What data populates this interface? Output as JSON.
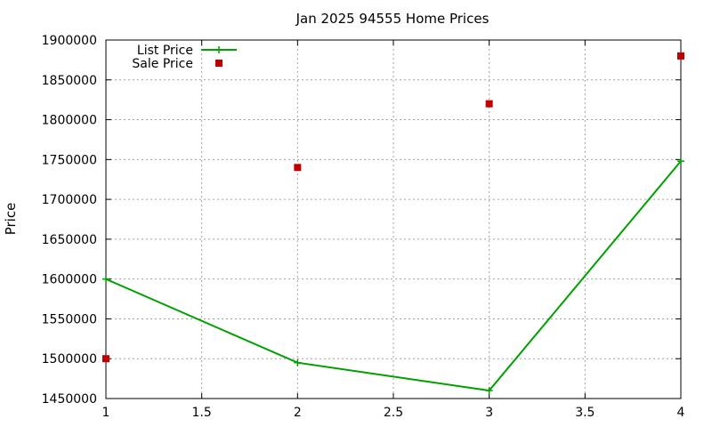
{
  "chart_data": {
    "type": "line",
    "title": "Jan 2025 94555 Home Prices",
    "xlabel": "",
    "ylabel": "Price",
    "xlim": [
      1,
      4
    ],
    "ylim": [
      1450000,
      1900000
    ],
    "xticks": [
      "1",
      "1.5",
      "2",
      "2.5",
      "3",
      "3.5",
      "4"
    ],
    "yticks": [
      "1450000",
      "1500000",
      "1550000",
      "1600000",
      "1650000",
      "1700000",
      "1750000",
      "1800000",
      "1850000",
      "1900000"
    ],
    "grid": true,
    "legend_position": "top-left",
    "series": [
      {
        "name": "List Price",
        "style": "line-points",
        "marker": "plus",
        "color": "#00a000",
        "x": [
          1,
          2,
          3,
          4
        ],
        "values": [
          1600000,
          1495000,
          1460000,
          1748000
        ]
      },
      {
        "name": "Sale Price",
        "style": "points",
        "marker": "square",
        "color": "#c00000",
        "x": [
          1,
          2,
          3,
          4
        ],
        "values": [
          1500000,
          1740000,
          1820000,
          1880000
        ]
      }
    ]
  }
}
